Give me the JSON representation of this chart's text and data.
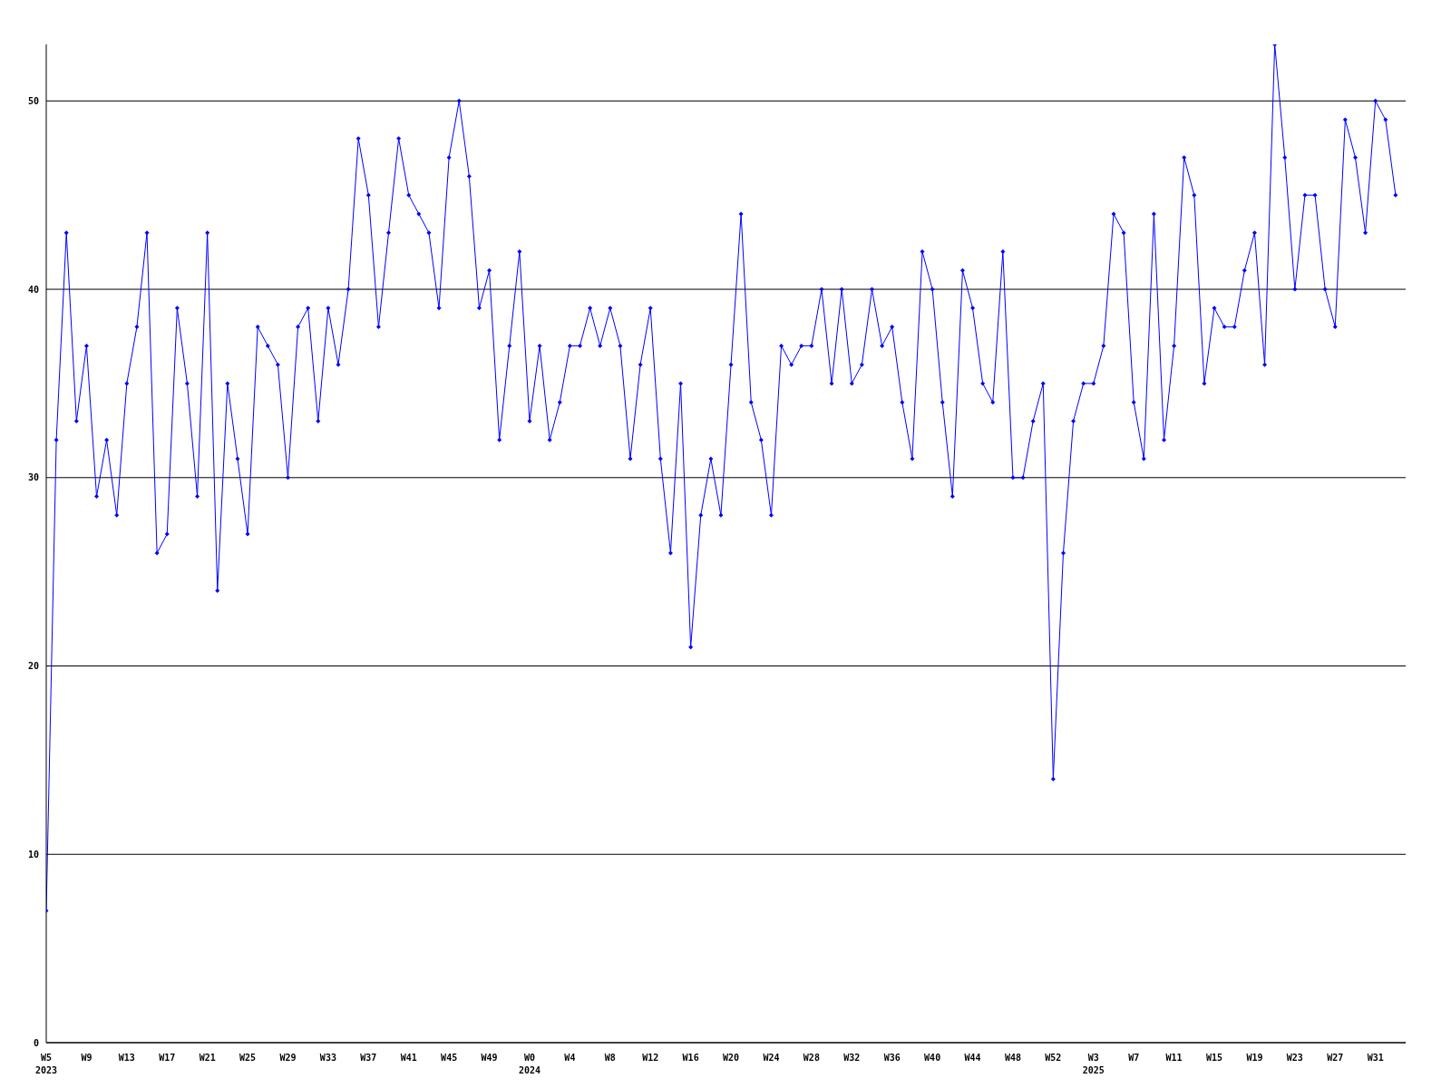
{
  "chart_data": {
    "type": "line",
    "categories": [
      "W5\n2023",
      null,
      null,
      null,
      "W9",
      null,
      null,
      null,
      "W13",
      null,
      null,
      null,
      "W17",
      null,
      null,
      null,
      "W21",
      null,
      null,
      null,
      "W25",
      null,
      null,
      null,
      "W29",
      null,
      null,
      null,
      "W33",
      null,
      null,
      null,
      "W37",
      null,
      null,
      null,
      "W41",
      null,
      null,
      null,
      "W45",
      null,
      null,
      null,
      "W49",
      null,
      null,
      null,
      "W0\n2024",
      null,
      null,
      null,
      "W4",
      null,
      null,
      null,
      "W8",
      null,
      null,
      null,
      "W12",
      null,
      null,
      null,
      "W16",
      null,
      null,
      null,
      "W20",
      null,
      null,
      null,
      "W24",
      null,
      null,
      null,
      "W28",
      null,
      null,
      null,
      "W32",
      null,
      null,
      null,
      "W36",
      null,
      null,
      null,
      "W40",
      null,
      null,
      null,
      "W44",
      null,
      null,
      null,
      "W48",
      null,
      null,
      null,
      "W52",
      null,
      null,
      null,
      "W3\n2025",
      null,
      null,
      null,
      "W7",
      null,
      null,
      null,
      "W11",
      null,
      null,
      null,
      "W15",
      null,
      null,
      null,
      "W19",
      null,
      null,
      null,
      "W23",
      null,
      null,
      null,
      "W27",
      null,
      null,
      null,
      "W31",
      null,
      null
    ],
    "series": [
      {
        "color": "#0000ff",
        "values": [
          7,
          32,
          43,
          33,
          37,
          29,
          32,
          28,
          35,
          38,
          43,
          26,
          27,
          39,
          35,
          29,
          43,
          24,
          35,
          31,
          27,
          38,
          37,
          36,
          30,
          38,
          39,
          33,
          39,
          36,
          40,
          48,
          45,
          38,
          43,
          48,
          45,
          44,
          43,
          39,
          47,
          50,
          46,
          39,
          41,
          32,
          37,
          42,
          33,
          37,
          32,
          34,
          37,
          37,
          39,
          37,
          39,
          37,
          31,
          36,
          39,
          31,
          26,
          35,
          21,
          28,
          31,
          28,
          36,
          44,
          34,
          32,
          28,
          37,
          36,
          37,
          37,
          40,
          35,
          40,
          35,
          36,
          40,
          37,
          38,
          34,
          31,
          42,
          40,
          34,
          29,
          41,
          39,
          35,
          34,
          42,
          30,
          30,
          33,
          35,
          14,
          26,
          33,
          35,
          35,
          37,
          44,
          43,
          34,
          31,
          44,
          32,
          37,
          47,
          45,
          35,
          39,
          38,
          38,
          41,
          43,
          36,
          53,
          47,
          40,
          45,
          45,
          40,
          38,
          49,
          47,
          43,
          50,
          49,
          45
        ]
      }
    ],
    "ylim": [
      0,
      53
    ],
    "yticks": [
      0,
      10,
      20,
      30,
      40,
      50
    ],
    "grid": "y",
    "legend": false,
    "marker": "diamond",
    "line_style": "solid"
  }
}
